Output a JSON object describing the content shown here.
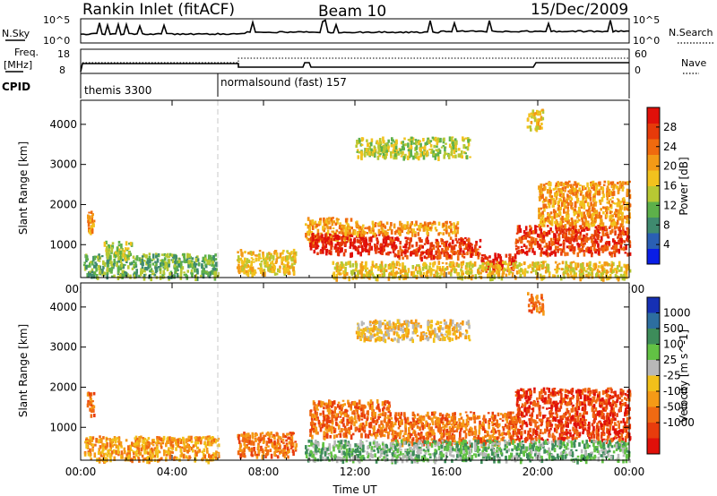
{
  "header": {
    "title": "Rankin Inlet (fitACF)",
    "beam": "Beam 10",
    "date": "15/Dec/2009"
  },
  "status_panels": {
    "nsky_label": "N.Sky",
    "nsearch_label": "N.Search",
    "nsky_ticks": [
      "10^5",
      "10^0"
    ],
    "nsearch_ticks": [
      "10^5",
      "10^0"
    ],
    "freq_label": "Freq.",
    "freq_unit": "[MHz]",
    "freq_ticks": [
      "18",
      "8"
    ],
    "nave_label": "Nave",
    "nave_ticks": [
      "60",
      "0"
    ],
    "cpid_label": "CPID",
    "cpid_segments": [
      {
        "label": "themis 3300",
        "start_hour": 0,
        "end_hour": 6
      },
      {
        "label": "normalsound (fast) 157",
        "start_hour": 6,
        "end_hour": 24
      }
    ]
  },
  "chart_data": [
    {
      "type": "heatmap",
      "name": "power",
      "ylabel": "Slant Range [km]",
      "xlabel": "",
      "xlim": [
        0,
        24
      ],
      "ylim": [
        180,
        4600
      ],
      "x_ticks": [
        "00:00",
        "04:00",
        "08:00",
        "12:00",
        "16:00",
        "20:00",
        "00:00"
      ],
      "y_ticks": [
        1000,
        2000,
        3000,
        4000
      ],
      "colorbar": {
        "label": "Power [dB]",
        "ticks": [
          "4",
          "8",
          "12",
          "16",
          "20",
          "24",
          "28"
        ],
        "colors": [
          "#0a1ee6",
          "#2a5fb4",
          "#3f8a6f",
          "#5db04a",
          "#b7c833",
          "#f2c21e",
          "#f39a16",
          "#f06a0e",
          "#e63a0a",
          "#e0100a"
        ]
      },
      "regions": [
        {
          "t": [
            0.25,
            0.55
          ],
          "r": [
            1300,
            1900
          ],
          "level": 6
        },
        {
          "t": [
            0.1,
            6.0
          ],
          "r": [
            200,
            800
          ],
          "level": 3
        },
        {
          "t": [
            1.0,
            2.2
          ],
          "r": [
            700,
            1100
          ],
          "level": 4
        },
        {
          "t": [
            6.8,
            9.4
          ],
          "r": [
            300,
            900
          ],
          "level": 5
        },
        {
          "t": [
            9.8,
            11.8
          ],
          "r": [
            1100,
            1700
          ],
          "level": 6
        },
        {
          "t": [
            10.0,
            13.5
          ],
          "r": [
            800,
            1300
          ],
          "level": 9
        },
        {
          "t": [
            13.5,
            17.5
          ],
          "r": [
            700,
            1200
          ],
          "level": 8
        },
        {
          "t": [
            17.5,
            19.0
          ],
          "r": [
            400,
            800
          ],
          "level": 9
        },
        {
          "t": [
            11.5,
            16.5
          ],
          "r": [
            1300,
            1600
          ],
          "level": 6
        },
        {
          "t": [
            19.0,
            24.0
          ],
          "r": [
            800,
            1500
          ],
          "level": 8
        },
        {
          "t": [
            20.0,
            24.0
          ],
          "r": [
            1500,
            2600
          ],
          "level": 6
        },
        {
          "t": [
            12.0,
            17.0
          ],
          "r": [
            3200,
            3700
          ],
          "level": 4
        },
        {
          "t": [
            19.5,
            20.2
          ],
          "r": [
            3900,
            4400
          ],
          "level": 5
        },
        {
          "t": [
            11.0,
            24.0
          ],
          "r": [
            200,
            600
          ],
          "level": 5
        }
      ]
    },
    {
      "type": "heatmap",
      "name": "velocity",
      "ylabel": "Slant Range [km]",
      "xlabel": "Time UT",
      "xlim": [
        0,
        24
      ],
      "ylim": [
        180,
        4600
      ],
      "x_ticks": [
        "00:00",
        "04:00",
        "08:00",
        "12:00",
        "16:00",
        "20:00",
        "00:00"
      ],
      "y_ticks": [
        1000,
        2000,
        3000,
        4000
      ],
      "colorbar": {
        "label": "Velocity [m s^-1]",
        "ticks": [
          "1000",
          "500",
          "100",
          "25",
          "-25",
          "-100",
          "-500",
          "-1000"
        ],
        "colors": [
          "#1630b4",
          "#2d6ea0",
          "#3d8c5a",
          "#62c244",
          "#b8b8b8",
          "#f2c01a",
          "#f59a16",
          "#f06a12",
          "#e83c0c",
          "#e0100a"
        ]
      },
      "regions": [
        {
          "t": [
            0.25,
            0.55
          ],
          "r": [
            1300,
            1900
          ],
          "level": 7
        },
        {
          "t": [
            0.1,
            6.0
          ],
          "r": [
            200,
            800
          ],
          "level": 6
        },
        {
          "t": [
            6.8,
            9.4
          ],
          "r": [
            300,
            900
          ],
          "level": 7
        },
        {
          "t": [
            10.0,
            13.5
          ],
          "r": [
            800,
            1700
          ],
          "level": 7
        },
        {
          "t": [
            13.5,
            19.0
          ],
          "r": [
            600,
            1400
          ],
          "level": 7
        },
        {
          "t": [
            19.0,
            24.0
          ],
          "r": [
            700,
            2000
          ],
          "level": 8
        },
        {
          "t": [
            12.0,
            17.0
          ],
          "r": [
            3200,
            3700
          ],
          "level": 5
        },
        {
          "t": [
            19.5,
            20.2
          ],
          "r": [
            3900,
            4400
          ],
          "level": 7
        },
        {
          "t": [
            9.8,
            24.0
          ],
          "r": [
            200,
            700
          ],
          "level": 3
        }
      ]
    }
  ]
}
